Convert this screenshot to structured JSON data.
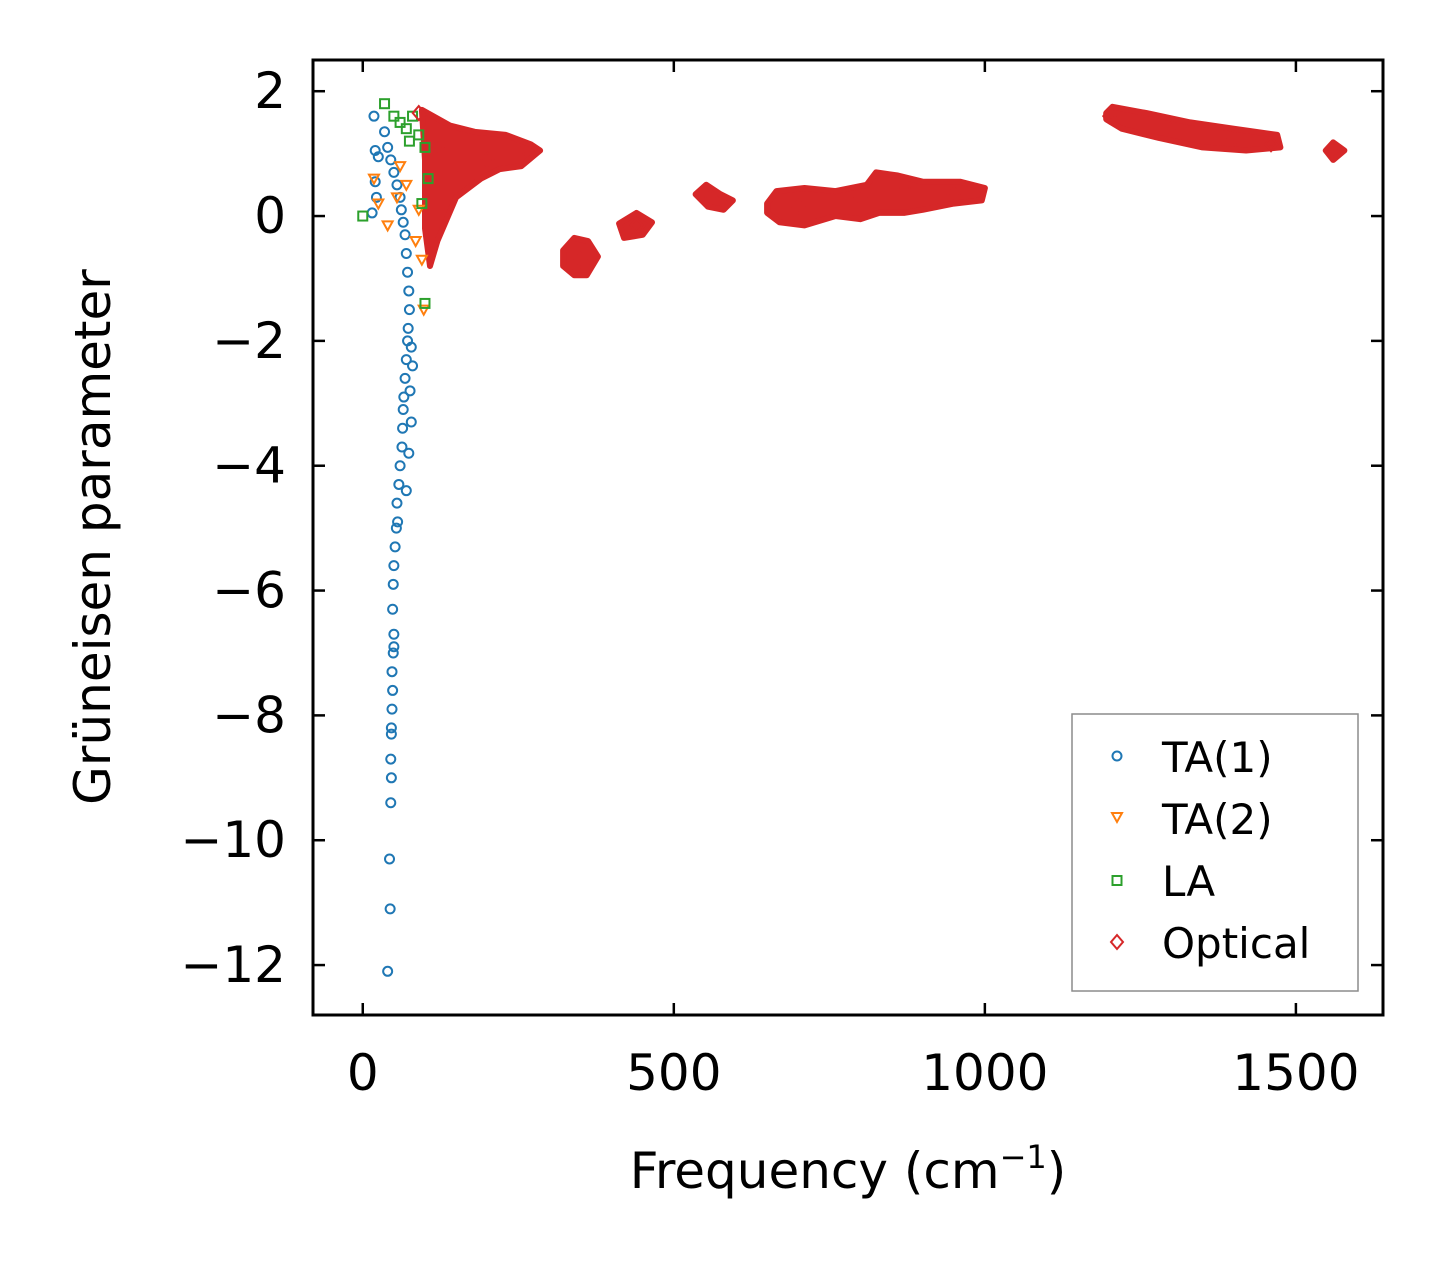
{
  "chart_data": {
    "type": "scatter",
    "title": "",
    "xlabel": "Frequency (cm",
    "xlabel_sup": "−1",
    "xlabel_end": ")",
    "ylabel": "Grüneisen parameter",
    "xlim": [
      -80,
      1640
    ],
    "ylim": [
      -12.8,
      2.5
    ],
    "xticks": [
      0,
      500,
      1000,
      1500
    ],
    "xtick_labels": [
      "0",
      "500",
      "1000",
      "1500"
    ],
    "yticks": [
      2,
      0,
      -2,
      -4,
      -6,
      -8,
      -10,
      -12
    ],
    "ytick_labels": [
      "2",
      "0",
      "−2",
      "−4",
      "−6",
      "−8",
      "−10",
      "−12"
    ],
    "legend_position": "lower-right",
    "series": [
      {
        "name": "TA(1)",
        "marker": "circle",
        "color": "#1f77b4",
        "points": [
          [
            18,
            1.6
          ],
          [
            20,
            1.05
          ],
          [
            25,
            0.95
          ],
          [
            20,
            0.55
          ],
          [
            22,
            0.3
          ],
          [
            15,
            0.05
          ],
          [
            35,
            1.35
          ],
          [
            40,
            1.1
          ],
          [
            45,
            0.9
          ],
          [
            50,
            0.7
          ],
          [
            55,
            0.5
          ],
          [
            60,
            0.3
          ],
          [
            62,
            0.1
          ],
          [
            65,
            -0.1
          ],
          [
            68,
            -0.3
          ],
          [
            70,
            -0.6
          ],
          [
            72,
            -0.9
          ],
          [
            74,
            -1.2
          ],
          [
            75,
            -1.5
          ],
          [
            73,
            -1.8
          ],
          [
            72,
            -2.0
          ],
          [
            70,
            -2.3
          ],
          [
            68,
            -2.6
          ],
          [
            66,
            -2.9
          ],
          [
            65,
            -3.1
          ],
          [
            64,
            -3.4
          ],
          [
            63,
            -3.7
          ],
          [
            60,
            -4.0
          ],
          [
            58,
            -4.3
          ],
          [
            55,
            -4.6
          ],
          [
            56,
            -4.9
          ],
          [
            54,
            -5.0
          ],
          [
            52,
            -5.3
          ],
          [
            50,
            -5.6
          ],
          [
            49,
            -5.9
          ],
          [
            48,
            -6.3
          ],
          [
            50,
            -6.7
          ],
          [
            50,
            -6.9
          ],
          [
            49,
            -7.0
          ],
          [
            47,
            -7.3
          ],
          [
            48,
            -7.6
          ],
          [
            47,
            -7.9
          ],
          [
            46,
            -8.2
          ],
          [
            46,
            -8.3
          ],
          [
            45,
            -8.7
          ],
          [
            46,
            -9.0
          ],
          [
            45,
            -9.4
          ],
          [
            43,
            -10.3
          ],
          [
            44,
            -11.1
          ],
          [
            40,
            -12.1
          ],
          [
            78,
            -3.3
          ],
          [
            76,
            -2.8
          ],
          [
            80,
            -2.4
          ],
          [
            78,
            -2.1
          ],
          [
            74,
            -3.8
          ],
          [
            70,
            -4.4
          ]
        ]
      },
      {
        "name": "TA(2)",
        "marker": "triangle-down",
        "color": "#ff7f0e",
        "points": [
          [
            18,
            0.6
          ],
          [
            25,
            0.2
          ],
          [
            40,
            -0.15
          ],
          [
            55,
            0.3
          ],
          [
            70,
            0.5
          ],
          [
            90,
            0.1
          ],
          [
            95,
            -0.7
          ],
          [
            98,
            -1.5
          ],
          [
            85,
            -0.4
          ],
          [
            60,
            0.8
          ]
        ]
      },
      {
        "name": "LA",
        "marker": "square",
        "color": "#2ca02c",
        "points": [
          [
            0,
            0.0
          ],
          [
            35,
            1.8
          ],
          [
            50,
            1.6
          ],
          [
            60,
            1.5
          ],
          [
            70,
            1.4
          ],
          [
            80,
            1.6
          ],
          [
            90,
            1.3
          ],
          [
            100,
            1.1
          ],
          [
            105,
            0.6
          ],
          [
            100,
            -1.4
          ],
          [
            95,
            0.2
          ],
          [
            75,
            1.2
          ]
        ]
      },
      {
        "name": "Optical",
        "marker": "diamond",
        "color": "#d62728",
        "points": [
          [
            90,
            1.65
          ],
          [
            120,
            1.1
          ],
          [
            150,
            0.6
          ],
          [
            200,
            0.9
          ],
          [
            260,
            1.1
          ],
          [
            350,
            -0.7
          ],
          [
            440,
            -0.15
          ],
          [
            560,
            0.3
          ],
          [
            700,
            0.15
          ],
          [
            800,
            0.3
          ],
          [
            870,
            0.45
          ],
          [
            950,
            0.35
          ],
          [
            1200,
            1.6
          ],
          [
            1300,
            1.4
          ],
          [
            1400,
            1.25
          ],
          [
            1460,
            1.15
          ],
          [
            1560,
            1.02
          ]
        ]
      }
    ],
    "optical_clusters": [
      {
        "points": [
          [
            95,
            1.7
          ],
          [
            140,
            1.45
          ],
          [
            180,
            1.35
          ],
          [
            230,
            1.3
          ],
          [
            270,
            1.15
          ],
          [
            285,
            1.05
          ],
          [
            255,
            0.8
          ],
          [
            220,
            0.75
          ],
          [
            190,
            0.6
          ],
          [
            150,
            0.3
          ],
          [
            120,
            -0.4
          ],
          [
            108,
            -0.8
          ],
          [
            100,
            -0.2
          ],
          [
            100,
            0.9
          ]
        ]
      },
      {
        "points": [
          [
            322,
            -0.55
          ],
          [
            340,
            -0.35
          ],
          [
            362,
            -0.4
          ],
          [
            378,
            -0.65
          ],
          [
            360,
            -0.95
          ],
          [
            340,
            -0.95
          ],
          [
            322,
            -0.8
          ]
        ]
      },
      {
        "points": [
          [
            412,
            -0.12
          ],
          [
            440,
            0.05
          ],
          [
            465,
            -0.1
          ],
          [
            450,
            -0.3
          ],
          [
            420,
            -0.35
          ]
        ]
      },
      {
        "points": [
          [
            535,
            0.35
          ],
          [
            552,
            0.5
          ],
          [
            575,
            0.35
          ],
          [
            595,
            0.25
          ],
          [
            580,
            0.1
          ],
          [
            555,
            0.15
          ]
        ]
      },
      {
        "points": [
          [
            650,
            0.2
          ],
          [
            665,
            0.4
          ],
          [
            710,
            0.45
          ],
          [
            760,
            0.4
          ],
          [
            810,
            0.5
          ],
          [
            825,
            0.7
          ],
          [
            860,
            0.65
          ],
          [
            900,
            0.55
          ],
          [
            960,
            0.55
          ],
          [
            1000,
            0.45
          ],
          [
            995,
            0.25
          ],
          [
            950,
            0.2
          ],
          [
            900,
            0.1
          ],
          [
            870,
            0.05
          ],
          [
            830,
            0.05
          ],
          [
            800,
            -0.05
          ],
          [
            760,
            0.0
          ],
          [
            710,
            -0.15
          ],
          [
            670,
            -0.1
          ],
          [
            650,
            0.05
          ]
        ]
      },
      {
        "points": [
          [
            1195,
            1.65
          ],
          [
            1205,
            1.75
          ],
          [
            1260,
            1.65
          ],
          [
            1330,
            1.5
          ],
          [
            1400,
            1.4
          ],
          [
            1470,
            1.3
          ],
          [
            1475,
            1.1
          ],
          [
            1420,
            1.05
          ],
          [
            1350,
            1.1
          ],
          [
            1280,
            1.25
          ],
          [
            1220,
            1.4
          ],
          [
            1195,
            1.55
          ]
        ]
      },
      {
        "points": [
          [
            1548,
            1.05
          ],
          [
            1560,
            1.18
          ],
          [
            1578,
            1.05
          ],
          [
            1560,
            0.9
          ]
        ]
      }
    ]
  }
}
